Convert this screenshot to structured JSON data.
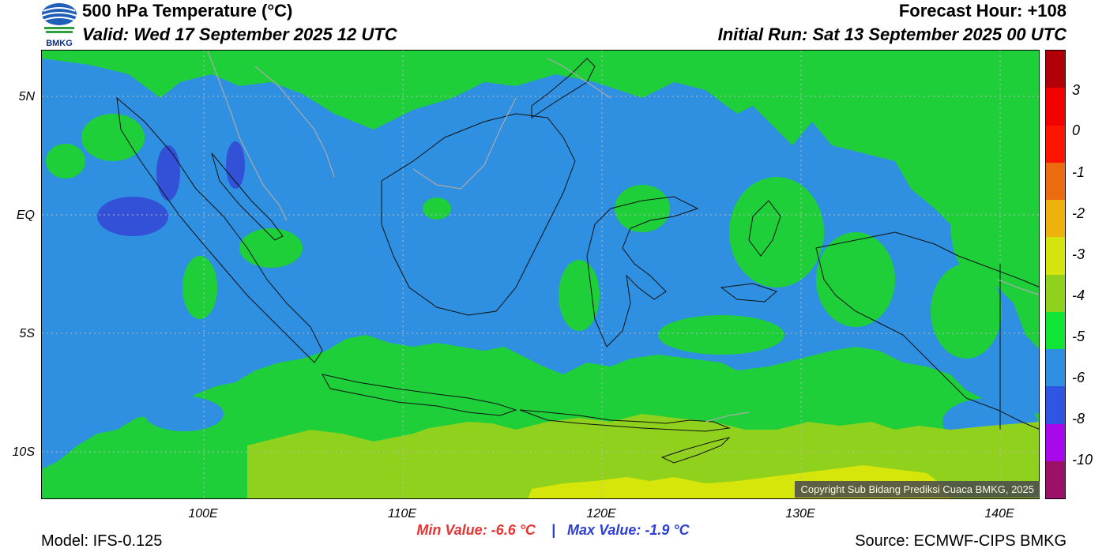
{
  "header": {
    "title": "500 hPa Temperature (°C)",
    "valid": "Valid: Wed 17 September 2025 12 UTC",
    "forecast_hour": "Forecast Hour: +108",
    "initial_run": "Initial Run: Sat 13 September 2025 00 UTC"
  },
  "logo": {
    "text": "BMKG",
    "icon": "bmkg-logo-icon"
  },
  "map": {
    "lat_labels": [
      "5N",
      "EQ",
      "5S",
      "10S"
    ],
    "lon_labels": [
      "100E",
      "110E",
      "120E",
      "130E",
      "140E"
    ],
    "copyright": "Copyright Sub Bidang Prediksi Cuaca BMKG, 2025",
    "colors": {
      "ocean_base": "#1fcf3a",
      "cold_minus5": "#2f8fe0",
      "cold_minus6": "#3251d6",
      "warm_minus4": "#8fd11c",
      "warm_minus3": "#d6e60a",
      "coast": "#111111",
      "border": "#aaaaaa"
    }
  },
  "colorbar": {
    "labels": [
      "3",
      "0",
      "-1",
      "-2",
      "-3",
      "-4",
      "-5",
      "-6",
      "-8",
      "-10"
    ],
    "colors": [
      "#b20008",
      "#f30000",
      "#fe1500",
      "#ec6a10",
      "#edb20e",
      "#d4e40e",
      "#8fd11c",
      "#10e434",
      "#2f8fe0",
      "#2f56e2",
      "#a809ec",
      "#9c1068"
    ]
  },
  "footer": {
    "min_value": "Min Value: -6.6 °C",
    "separator": "|",
    "max_value": "Max Value: -1.9 °C",
    "model": "Model: IFS-0.125",
    "source": "Source: ECMWF-CIPS BMKG"
  }
}
